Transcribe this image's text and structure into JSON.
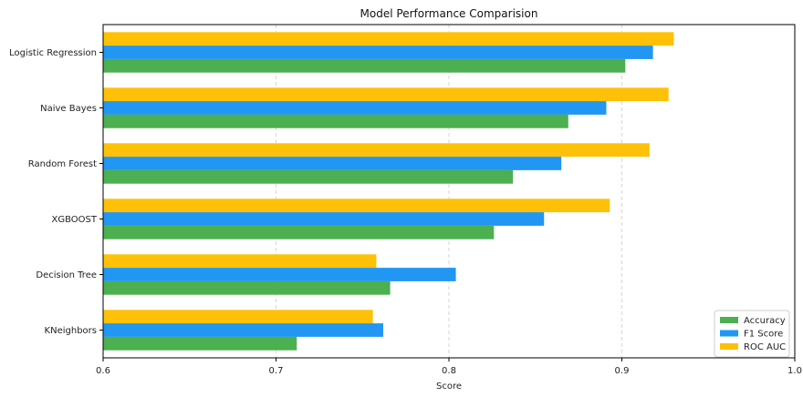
{
  "chart_data": {
    "type": "bar",
    "orientation": "horizontal",
    "title": "Model Performance Comparision",
    "xlabel": "Score",
    "ylabel": "",
    "xlim": [
      0.6,
      1.0
    ],
    "xticks": [
      "0.6",
      "0.7",
      "0.8",
      "0.9",
      "1.0"
    ],
    "grid": "x-dashed",
    "legend_position": "bottom-right",
    "categories": [
      "Logistic Regression",
      "Naive Bayes",
      "Random Forest",
      "XGBOOST",
      "Decision Tree",
      "KNeighbors"
    ],
    "series": [
      {
        "name": "Accuracy",
        "color": "#4caf50",
        "values": [
          0.902,
          0.869,
          0.837,
          0.826,
          0.766,
          0.712
        ]
      },
      {
        "name": "F1 Score",
        "color": "#2196f3",
        "values": [
          0.918,
          0.891,
          0.865,
          0.855,
          0.804,
          0.762
        ]
      },
      {
        "name": "ROC AUC",
        "color": "#ffc107",
        "values": [
          0.93,
          0.927,
          0.916,
          0.893,
          0.758,
          0.756
        ]
      }
    ]
  }
}
